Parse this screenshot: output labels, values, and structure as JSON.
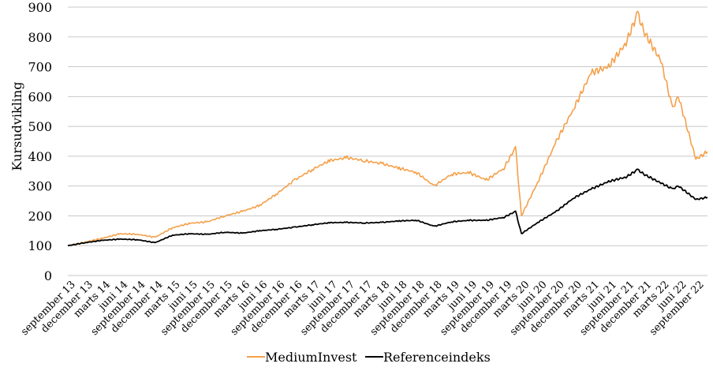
{
  "chart_data": {
    "type": "line",
    "title": "",
    "xlabel": "",
    "ylabel": "Kursudvikling",
    "ylim": [
      0,
      900
    ],
    "yticks": [
      0,
      100,
      200,
      300,
      400,
      500,
      600,
      700,
      800,
      900
    ],
    "grid": true,
    "legend_position": "bottom",
    "x_tick_labels": [
      "september 13",
      "december 13",
      "marts 14",
      "juni 14",
      "september 14",
      "december 14",
      "marts 15",
      "juni 15",
      "september 15",
      "december 15",
      "marts 16",
      "juni 16",
      "september 16",
      "december 16",
      "marts 17",
      "juni 17",
      "september 17",
      "december 17",
      "marts 18",
      "juni 18",
      "september 18",
      "december 18",
      "marts 19",
      "juni 19",
      "september 19",
      "december 19",
      "marts 20",
      "juni 20",
      "september 20",
      "december 20",
      "marts 21",
      "juni 21",
      "september 21",
      "december 21",
      "marts 22",
      "juni 22",
      "september 22"
    ],
    "x": [
      "2013-09",
      "2013-12",
      "2014-03",
      "2014-06",
      "2014-09",
      "2014-12",
      "2015-03",
      "2015-06",
      "2015-09",
      "2015-12",
      "2016-03",
      "2016-06",
      "2016-09",
      "2016-12",
      "2017-03",
      "2017-06",
      "2017-09",
      "2017-12",
      "2018-03",
      "2018-06",
      "2018-09",
      "2018-12",
      "2019-03",
      "2019-06",
      "2019-09",
      "2019-12",
      "2020-02",
      "2020-03",
      "2020-06",
      "2020-09",
      "2020-12",
      "2021-03",
      "2021-06",
      "2021-09",
      "2021-11",
      "2021-12",
      "2022-03",
      "2022-05",
      "2022-06",
      "2022-09",
      "2022-11"
    ],
    "series": [
      {
        "name": "MediumInvest",
        "color": "#F5A04A",
        "values": [
          100,
          112,
          125,
          140,
          138,
          128,
          160,
          175,
          180,
          200,
          215,
          235,
          275,
          320,
          355,
          385,
          395,
          385,
          375,
          360,
          345,
          300,
          340,
          345,
          320,
          360,
          430,
          200,
          320,
          450,
          560,
          680,
          700,
          780,
          880,
          820,
          720,
          560,
          600,
          390,
          415
        ]
      },
      {
        "name": "Referenceindeks",
        "color": "#000000",
        "values": [
          100,
          110,
          118,
          122,
          120,
          110,
          135,
          140,
          138,
          145,
          142,
          150,
          155,
          162,
          170,
          177,
          178,
          176,
          178,
          183,
          185,
          165,
          180,
          185,
          185,
          195,
          215,
          140,
          180,
          215,
          260,
          290,
          315,
          330,
          355,
          340,
          310,
          290,
          300,
          255,
          262
        ]
      }
    ]
  }
}
